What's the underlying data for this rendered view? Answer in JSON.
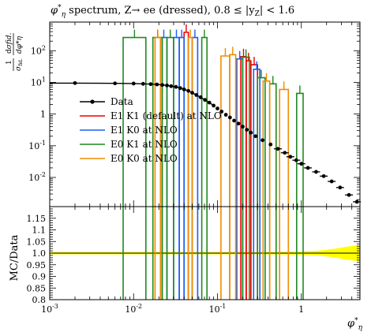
{
  "chart_data": {
    "type": "line",
    "title": "φ*η spectrum, Z→ ee (dressed), 0.8 ≤ |yZ| < 1.6",
    "title_parts": {
      "phi": "φ",
      "star": "*",
      "eta": "η",
      "mid": " spectrum, Z→ ee (dressed), 0.8 ≤ |y",
      "z": "Z",
      "tail": "| < 1.6"
    },
    "main": {
      "ylabel": {
        "frac": "1",
        "sigma": "σ",
        "fid": "fid.",
        "d": "d",
        "sigma_fid": "σfid.",
        "dphi": "dφ*η"
      },
      "xscale": "log",
      "yscale": "log",
      "xlim": [
        0.001,
        5.0
      ],
      "ylim": [
        0.0012,
        800
      ],
      "yticks": [
        {
          "v": 0.01,
          "label": "10",
          "exp": "-2"
        },
        {
          "v": 0.1,
          "label": "10",
          "exp": "-1"
        },
        {
          "v": 1,
          "label": "1",
          "exp": ""
        },
        {
          "v": 10,
          "label": "10",
          "exp": "1"
        },
        {
          "v": 100,
          "label": "10",
          "exp": "2"
        }
      ]
    },
    "ratio": {
      "ylabel": "MC/Data",
      "ylim": [
        0.8,
        1.2
      ],
      "yticks": [
        {
          "v": 0.8,
          "label": "0.8"
        },
        {
          "v": 0.85,
          "label": "0.85"
        },
        {
          "v": 0.9,
          "label": "0.9"
        },
        {
          "v": 0.95,
          "label": "0.95"
        },
        {
          "v": 1.0,
          "label": "1.0"
        },
        {
          "v": 1.05,
          "label": "1.05"
        },
        {
          "v": 1.1,
          "label": "1.1"
        },
        {
          "v": 1.15,
          "label": "1.15"
        }
      ]
    },
    "xlabel": {
      "phi": "φ",
      "star": "*",
      "eta": "η"
    },
    "xticks": [
      {
        "v": 0.001,
        "label": "10",
        "exp": "-3"
      },
      {
        "v": 0.01,
        "label": "10",
        "exp": "-2"
      },
      {
        "v": 0.1,
        "label": "10",
        "exp": "-1"
      },
      {
        "v": 1,
        "label": "1",
        "exp": ""
      }
    ],
    "legend": {
      "placement": "center-left",
      "entries": [
        {
          "name": "Data",
          "color": "#000000",
          "marker": true
        },
        {
          "name": "E1 K1 (default) at NLO",
          "color": "#ee0000"
        },
        {
          "name": "E1 K0 at NLO",
          "color": "#1a5ff5"
        },
        {
          "name": "E0 K1 at NLO",
          "color": "#1f8a1f"
        },
        {
          "name": "E0 K0 at NLO",
          "color": "#f28c00"
        }
      ]
    },
    "data": {
      "x": [
        0.002,
        0.006,
        0.01,
        0.013,
        0.016,
        0.019,
        0.022,
        0.025,
        0.028,
        0.032,
        0.036,
        0.04,
        0.045,
        0.05,
        0.056,
        0.063,
        0.071,
        0.08,
        0.09,
        0.1,
        0.112,
        0.126,
        0.141,
        0.158,
        0.178,
        0.2,
        0.224,
        0.25,
        0.285,
        0.345,
        0.43,
        0.525,
        0.635,
        0.74,
        0.87,
        1.0,
        1.2,
        1.5,
        1.85,
        2.3,
        2.9,
        3.7,
        4.6
      ],
      "y": [
        9.5,
        9.3,
        9.2,
        9.0,
        8.8,
        8.6,
        8.3,
        8.0,
        7.6,
        7.2,
        6.6,
        6.0,
        5.4,
        4.7,
        4.0,
        3.4,
        2.8,
        2.3,
        1.85,
        1.5,
        1.2,
        0.95,
        0.78,
        0.62,
        0.5,
        0.4,
        0.32,
        0.26,
        0.2,
        0.15,
        0.11,
        0.08,
        0.06,
        0.045,
        0.035,
        0.027,
        0.02,
        0.015,
        0.011,
        0.0075,
        0.0048,
        0.0028,
        0.0017
      ]
    },
    "series": [
      {
        "name": "E1 K1 (default) at NLO",
        "color": "#ee0000",
        "bins": [
          [
            0.04,
            0.045,
            380
          ],
          [
            0.19,
            0.22,
            65
          ],
          [
            0.22,
            0.25,
            48
          ],
          [
            0.25,
            0.3,
            36
          ]
        ]
      },
      {
        "name": "E1 K0 at NLO",
        "color": "#1a5ff5",
        "bins": [
          [
            0.021,
            0.025,
            260
          ],
          [
            0.03,
            0.035,
            260
          ],
          [
            0.035,
            0.04,
            260
          ],
          [
            0.05,
            0.058,
            260
          ],
          [
            0.17,
            0.2,
            55
          ],
          [
            0.27,
            0.32,
            26
          ]
        ]
      },
      {
        "name": "E0 K1 at NLO",
        "color": "#1f8a1f",
        "bins": [
          [
            0.0075,
            0.014,
            260
          ],
          [
            0.017,
            0.022,
            260
          ],
          [
            0.025,
            0.03,
            260
          ],
          [
            0.065,
            0.075,
            260
          ],
          [
            0.2,
            0.24,
            62
          ],
          [
            0.3,
            0.37,
            14
          ],
          [
            0.42,
            0.5,
            9
          ],
          [
            0.88,
            1.05,
            4.5
          ]
        ]
      },
      {
        "name": "E0 K0 at NLO",
        "color": "#f28c00",
        "bins": [
          [
            0.018,
            0.021,
            260
          ],
          [
            0.045,
            0.05,
            260
          ],
          [
            0.11,
            0.14,
            68
          ],
          [
            0.14,
            0.165,
            75
          ],
          [
            0.35,
            0.42,
            11
          ],
          [
            0.55,
            0.7,
            6
          ]
        ]
      }
    ]
  }
}
